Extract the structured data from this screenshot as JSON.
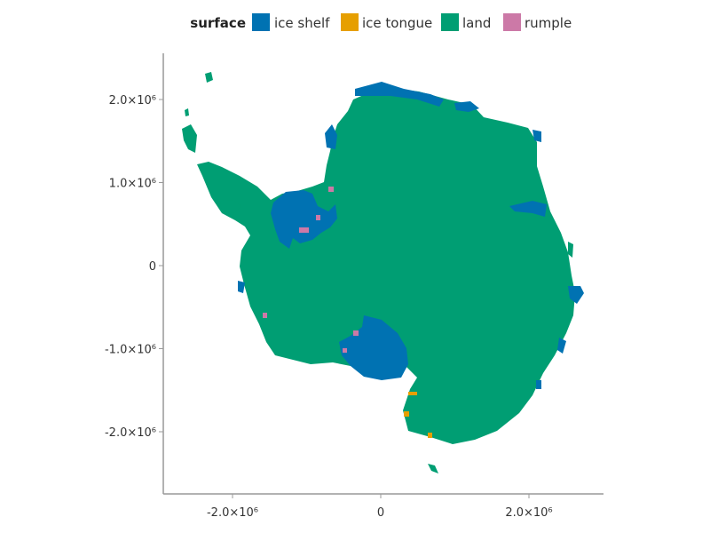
{
  "chart_data": {
    "type": "map",
    "legend": {
      "title": "surface",
      "placement": "top-center",
      "entries": [
        {
          "name": "ice shelf",
          "color": "#0072B2"
        },
        {
          "name": "ice tongue",
          "color": "#E69F00"
        },
        {
          "name": "land",
          "color": "#009E73"
        },
        {
          "name": "rumple",
          "color": "#CC79A7"
        }
      ]
    },
    "x_axis": {
      "ticks": [
        -2000000,
        0,
        2000000
      ],
      "tick_labels": [
        "-2.0×10⁶",
        "0",
        "2.0×10⁶"
      ],
      "range": [
        -2900000,
        3000000
      ]
    },
    "y_axis": {
      "ticks": [
        2000000,
        1000000,
        0,
        -1000000,
        -2000000
      ],
      "tick_labels": [
        "2.0×10⁶",
        "1.0×10⁶",
        "0",
        "-1.0×10⁶",
        "-2.0×10⁶"
      ],
      "range": [
        -2750000,
        2550000
      ]
    },
    "grid": false,
    "xlabel": "",
    "ylabel": "",
    "title": ""
  }
}
